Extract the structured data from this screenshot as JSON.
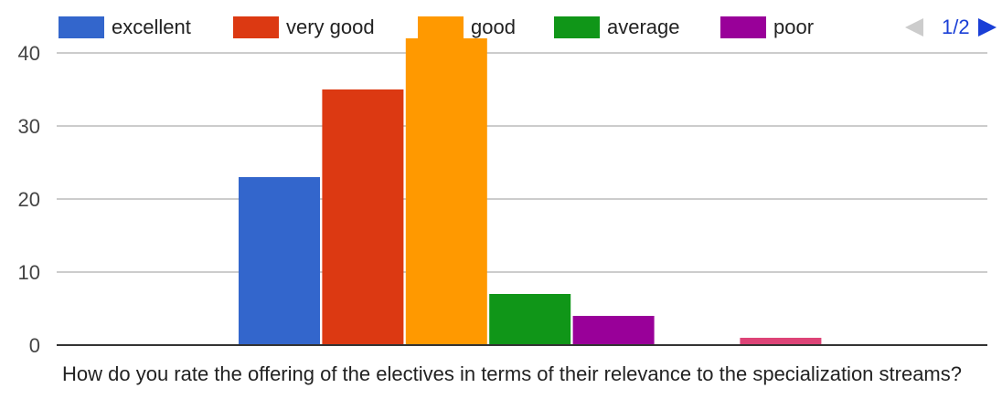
{
  "chart_data": {
    "type": "bar",
    "title": "",
    "xlabel": "How do you rate the offering of the electives in terms of their relevance to the specialization streams?",
    "ylabel": "",
    "ylim": [
      0,
      42
    ],
    "yticks": [
      0,
      10,
      20,
      30,
      40
    ],
    "grid": true,
    "legend_position": "top",
    "pager": "1/2",
    "bars": [
      {
        "name": "excellent",
        "value": 23,
        "color": "#3366cc"
      },
      {
        "name": "very good",
        "value": 35,
        "color": "#dc3912"
      },
      {
        "name": "good",
        "value": 42,
        "color": "#ff9900"
      },
      {
        "name": "average",
        "value": 7,
        "color": "#109618"
      },
      {
        "name": "poor",
        "value": 4,
        "color": "#990099"
      },
      {
        "name": "",
        "value": 0,
        "color": "#0099c6"
      },
      {
        "name": "",
        "value": 1,
        "color": "#dd4477"
      }
    ],
    "legend": [
      {
        "label": "excellent",
        "color": "#3366cc"
      },
      {
        "label": "very good",
        "color": "#dc3912"
      },
      {
        "label": "good",
        "color": "#ff9900"
      },
      {
        "label": "average",
        "color": "#109618"
      },
      {
        "label": "poor",
        "color": "#990099"
      }
    ]
  }
}
